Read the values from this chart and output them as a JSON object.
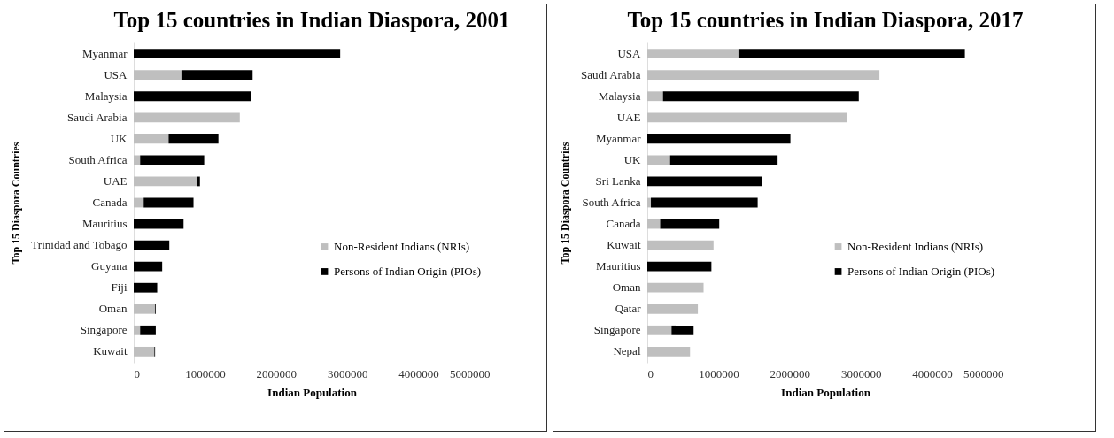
{
  "chart_data": [
    {
      "type": "bar",
      "title": "Top 15 countries in Indian Diaspora, 2001",
      "xlabel": "Indian Population",
      "ylabel": "Top 15 Diaspora Countries",
      "orientation": "horizontal",
      "stacked": true,
      "legend": "right",
      "categories": [
        "Myanmar",
        "USA",
        "Malaysia",
        "Saudi Arabia",
        "UK",
        "South Africa",
        "UAE",
        "Canada",
        "Mauritius",
        "Trinidad and Tobago",
        "Guyana",
        "Fiji",
        "Oman",
        "Singapore",
        "Kuwait"
      ],
      "series": [
        {
          "name": "Non-Resident Indians (NRIs)",
          "color": "#bfbfbf",
          "values": [
            0,
            670000,
            0,
            1490000,
            490000,
            90000,
            890000,
            140000,
            0,
            0,
            0,
            0,
            300000,
            90000,
            290000
          ]
        },
        {
          "name": "Persons of Indian Origin (PIOs)",
          "color": "#000000",
          "values": [
            2900000,
            1000000,
            1650000,
            0,
            700000,
            900000,
            40000,
            700000,
            700000,
            500000,
            400000,
            330000,
            10000,
            220000,
            10000
          ]
        }
      ],
      "xlim": [
        0,
        5000000
      ],
      "xticks": [
        0,
        1000000,
        2000000,
        3000000,
        4000000,
        5000000
      ]
    },
    {
      "type": "bar",
      "title": "Top 15 countries in Indian Diaspora, 2017",
      "xlabel": "Indian Population",
      "ylabel": "Top 15 Diaspora Countries",
      "orientation": "horizontal",
      "stacked": true,
      "legend": "right",
      "categories": [
        "USA",
        "Saudi Arabia",
        "Malaysia",
        "UAE",
        "Myanmar",
        "UK",
        "Sri Lanka",
        "South Africa",
        "Canada",
        "Kuwait",
        "Mauritius",
        "Oman",
        "Qatar",
        "Singapore",
        "Nepal"
      ],
      "series": [
        {
          "name": "Non-Resident Indians (NRIs)",
          "color": "#bfbfbf",
          "values": [
            1280000,
            3260000,
            220000,
            2800000,
            0,
            320000,
            0,
            50000,
            180000,
            930000,
            0,
            790000,
            710000,
            340000,
            600000
          ]
        },
        {
          "name": "Persons of Indian Origin (PIOs)",
          "color": "#000000",
          "values": [
            3180000,
            0,
            2750000,
            10000,
            2010000,
            1510000,
            1610000,
            1500000,
            830000,
            0,
            900000,
            0,
            0,
            310000,
            0
          ]
        }
      ],
      "xlim": [
        0,
        5000000
      ],
      "xticks": [
        0,
        1000000,
        2000000,
        3000000,
        4000000,
        5000000
      ]
    }
  ]
}
